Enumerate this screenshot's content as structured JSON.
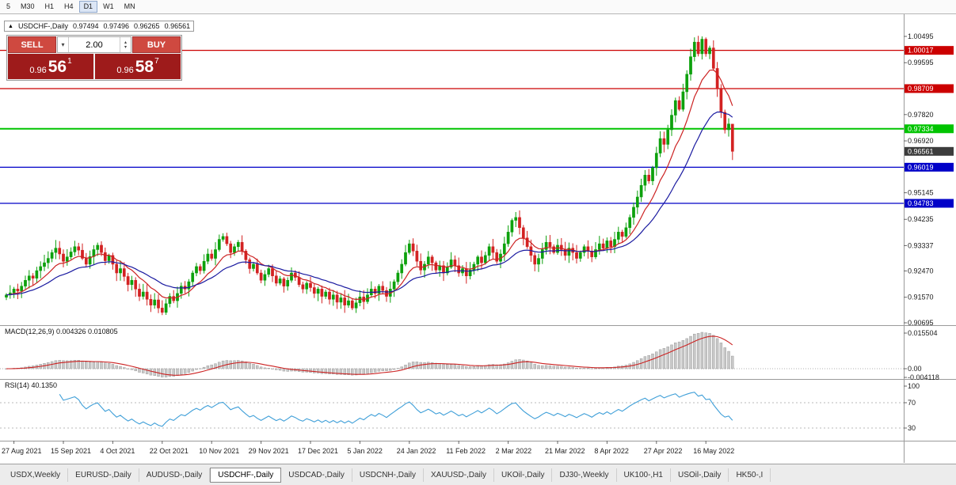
{
  "toolbar": {
    "timeframes": [
      "5",
      "M30",
      "H1",
      "H4",
      "D1",
      "W1",
      "MN"
    ],
    "active": "D1"
  },
  "symbol_info": {
    "collapse_arrow": "▲",
    "title": "USDCHF-,Daily",
    "open": "0.97494",
    "high": "0.97496",
    "low": "0.96265",
    "close": "0.96561"
  },
  "trade_panel": {
    "sell_label": "SELL",
    "buy_label": "BUY",
    "volume": "2.00",
    "bid_prefix": "0.96",
    "bid_big": "56",
    "bid_sup": "1",
    "ask_prefix": "0.96",
    "ask_big": "58",
    "ask_sup": "7",
    "button_color": "#cf4940",
    "price_box_color": "#9e1b1b",
    "dropdown_icon": "▾",
    "spin_up_icon": "▴",
    "spin_down_icon": "▾"
  },
  "macd": {
    "label": "MACD(12,26,9) 0.004326 0.010805",
    "axis_labels": [
      "0.015504",
      "0.00",
      "-0.004118"
    ],
    "histogram_color": "#c8c8c8",
    "signal_color": "#cc2222"
  },
  "rsi": {
    "label": "RSI(14) 40.1350",
    "axis_labels": [
      "100",
      "70",
      "30"
    ],
    "line_color": "#3f9fd8"
  },
  "dates": [
    "27 Aug 2021",
    "15 Sep 2021",
    "4 Oct 2021",
    "22 Oct 2021",
    "10 Nov 2021",
    "29 Nov 2021",
    "17 Dec 2021",
    "5 Jan 2022",
    "24 Jan 2022",
    "11 Feb 2022",
    "2 Mar 2022",
    "21 Mar 2022",
    "8 Apr 2022",
    "27 Apr 2022",
    "16 May 2022"
  ],
  "tabs": {
    "items": [
      "USDX,Weekly",
      "EURUSD-,Daily",
      "AUDUSD-,Daily",
      "USDCHF-,Daily",
      "USDCAD-,Daily",
      "USDCNH-,Daily",
      "XAUUSD-,Daily",
      "UKOil-,Daily",
      "DJ30-,Weekly",
      "UK100-,H1",
      "USOil-,Daily",
      "HK50-,I"
    ],
    "active_index": 3
  },
  "chart_data": {
    "type": "candlestick",
    "title": "USDCHF-,Daily",
    "up_color": "#0da10d",
    "down_color": "#d32222",
    "ma_fast": {
      "period": 10,
      "color": "#cc2222"
    },
    "ma_slow": {
      "period": 24,
      "color": "#1a1aa0"
    },
    "y_ticks": [
      1.00495,
      0.99595,
      0.9782,
      0.9692,
      0.95145,
      0.94235,
      0.93337,
      0.9247,
      0.9157,
      0.90695
    ],
    "levels": [
      {
        "price": 1.00017,
        "label": "1.00017",
        "color": "#cc0000",
        "width": 1.3
      },
      {
        "price": 0.98709,
        "label": "0.98709",
        "color": "#cc0000",
        "width": 1.3
      },
      {
        "price": 0.97334,
        "label": "0.97334",
        "color": "#00c400",
        "width": 2
      },
      {
        "price": 0.96019,
        "label": "0.96019",
        "color": "#0000c8",
        "width": 1.3
      },
      {
        "price": 0.94783,
        "label": "0.94783",
        "color": "#0000c8",
        "width": 1.3
      }
    ],
    "current_price": 0.96561,
    "current_label": "0.96561",
    "peak_high": 1.00495,
    "ohlc_last": {
      "open": 0.97494,
      "high": 0.97496,
      "low": 0.96265,
      "close": 0.96561
    },
    "closes": [
      0.9165,
      0.9172,
      0.9185,
      0.9178,
      0.9195,
      0.9215,
      0.923,
      0.9222,
      0.9248,
      0.9262,
      0.9275,
      0.929,
      0.931,
      0.9325,
      0.9305,
      0.928,
      0.9295,
      0.9312,
      0.933,
      0.9318,
      0.929,
      0.927,
      0.9296,
      0.932,
      0.9335,
      0.931,
      0.9282,
      0.93,
      0.927,
      0.924,
      0.9255,
      0.9228,
      0.92,
      0.9215,
      0.9185,
      0.916,
      0.9175,
      0.915,
      0.913,
      0.9148,
      0.912,
      0.9105,
      0.9135,
      0.916,
      0.9145,
      0.917,
      0.9195,
      0.9185,
      0.921,
      0.924,
      0.9262,
      0.9248,
      0.928,
      0.9305,
      0.929,
      0.932,
      0.9355,
      0.9365,
      0.934,
      0.931,
      0.933,
      0.9345,
      0.9315,
      0.9285,
      0.9255,
      0.927,
      0.924,
      0.9215,
      0.9235,
      0.9255,
      0.923,
      0.9205,
      0.922,
      0.9195,
      0.9215,
      0.924,
      0.9225,
      0.92,
      0.9185,
      0.9205,
      0.919,
      0.917,
      0.9185,
      0.916,
      0.9175,
      0.915,
      0.9165,
      0.914,
      0.9155,
      0.913,
      0.9145,
      0.912,
      0.9138,
      0.9158,
      0.9142,
      0.9165,
      0.9185,
      0.917,
      0.9195,
      0.918,
      0.916,
      0.9185,
      0.921,
      0.924,
      0.927,
      0.931,
      0.934,
      0.9315,
      0.928,
      0.925,
      0.927,
      0.9295,
      0.9275,
      0.925,
      0.9265,
      0.924,
      0.926,
      0.9285,
      0.9265,
      0.924,
      0.9255,
      0.923,
      0.925,
      0.927,
      0.9295,
      0.9275,
      0.93,
      0.933,
      0.931,
      0.928,
      0.9305,
      0.934,
      0.938,
      0.942,
      0.943,
      0.9395,
      0.936,
      0.933,
      0.93,
      0.927,
      0.929,
      0.932,
      0.9345,
      0.933,
      0.931,
      0.9335,
      0.932,
      0.93,
      0.9325,
      0.931,
      0.929,
      0.931,
      0.933,
      0.9315,
      0.9295,
      0.932,
      0.934,
      0.9325,
      0.935,
      0.933,
      0.9355,
      0.938,
      0.9365,
      0.9395,
      0.943,
      0.9465,
      0.95,
      0.954,
      0.9575,
      0.9555,
      0.96,
      0.965,
      0.97,
      0.968,
      0.973,
      0.978,
      0.983,
      0.98,
      0.986,
      0.992,
      0.998,
      1.003,
      0.999,
      1.004,
      0.999,
      1.001,
      0.994,
      0.987,
      0.979,
      0.973,
      0.975,
      0.9656
    ]
  }
}
